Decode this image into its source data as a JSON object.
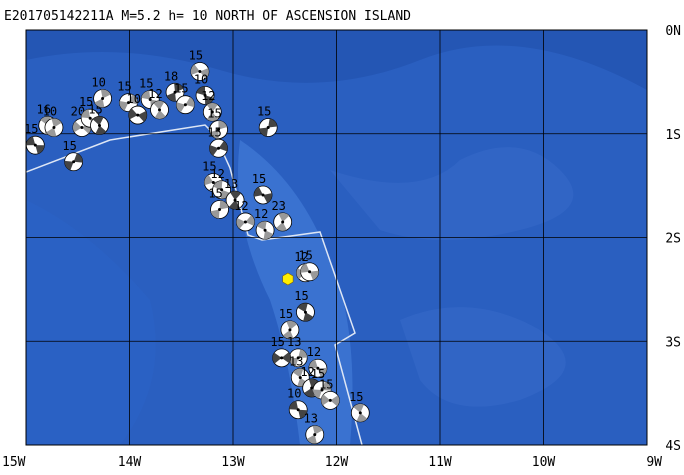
{
  "title": "E201705142211A M=5.2 h= 10 NORTH OF ASCENSION ISLAND",
  "lon_ticks": [
    {
      "value": -15,
      "label": "15W"
    },
    {
      "value": -14,
      "label": "14W"
    },
    {
      "value": -13,
      "label": "13W"
    },
    {
      "value": -12,
      "label": "12W"
    },
    {
      "value": -11,
      "label": "11W"
    },
    {
      "value": -10,
      "label": "10W"
    },
    {
      "value": -9,
      "label": "9W"
    }
  ],
  "lat_ticks": [
    {
      "value": 0,
      "label": "0N"
    },
    {
      "value": -1,
      "label": "1S"
    },
    {
      "value": -2,
      "label": "2S"
    },
    {
      "value": -3,
      "label": "3S"
    },
    {
      "value": -4,
      "label": "4S"
    }
  ],
  "epicenter": {
    "lon": -12.47,
    "lat": -2.4
  },
  "events": [
    {
      "lon": -14.91,
      "lat": -1.11,
      "depth": 15
    },
    {
      "lon": -14.79,
      "lat": -0.92,
      "depth": 16
    },
    {
      "lon": -14.73,
      "lat": -0.94,
      "depth": 10
    },
    {
      "lon": -14.54,
      "lat": -1.27,
      "depth": 15
    },
    {
      "lon": -14.46,
      "lat": -0.94,
      "depth": 20
    },
    {
      "lon": -14.38,
      "lat": -0.85,
      "depth": 15
    },
    {
      "lon": -14.29,
      "lat": -0.92,
      "depth": 15
    },
    {
      "lon": -14.26,
      "lat": -0.66,
      "depth": 10
    },
    {
      "lon": -14.01,
      "lat": -0.7,
      "depth": 15
    },
    {
      "lon": -13.92,
      "lat": -0.82,
      "depth": 10
    },
    {
      "lon": -13.8,
      "lat": -0.67,
      "depth": 15
    },
    {
      "lon": -13.71,
      "lat": -0.77,
      "depth": 12
    },
    {
      "lon": -13.56,
      "lat": -0.6,
      "depth": 18
    },
    {
      "lon": -13.46,
      "lat": -0.72,
      "depth": 15
    },
    {
      "lon": -13.32,
      "lat": -0.4,
      "depth": 15
    },
    {
      "lon": -13.27,
      "lat": -0.63,
      "depth": 10
    },
    {
      "lon": -13.2,
      "lat": -0.79,
      "depth": 12
    },
    {
      "lon": -13.14,
      "lat": -0.96,
      "depth": 15
    },
    {
      "lon": -13.14,
      "lat": -1.14,
      "depth": 15
    },
    {
      "lon": -13.19,
      "lat": -1.47,
      "depth": 15
    },
    {
      "lon": -13.11,
      "lat": -1.54,
      "depth": 12
    },
    {
      "lon": -12.98,
      "lat": -1.64,
      "depth": 13
    },
    {
      "lon": -13.13,
      "lat": -1.73,
      "depth": 15
    },
    {
      "lon": -12.88,
      "lat": -1.85,
      "depth": 12
    },
    {
      "lon": -12.71,
      "lat": -1.59,
      "depth": 15
    },
    {
      "lon": -12.69,
      "lat": -1.93,
      "depth": 12
    },
    {
      "lon": -12.52,
      "lat": -1.85,
      "depth": 23
    },
    {
      "lon": -12.66,
      "lat": -0.94,
      "depth": 15
    },
    {
      "lon": -12.3,
      "lat": -2.34,
      "depth": 12
    },
    {
      "lon": -12.26,
      "lat": -2.33,
      "depth": 15
    },
    {
      "lon": -12.3,
      "lat": -2.72,
      "depth": 15
    },
    {
      "lon": -12.45,
      "lat": -2.89,
      "depth": 15
    },
    {
      "lon": -12.37,
      "lat": -3.16,
      "depth": 13
    },
    {
      "lon": -12.53,
      "lat": -3.16,
      "depth": 15
    },
    {
      "lon": -12.18,
      "lat": -3.26,
      "depth": 12
    },
    {
      "lon": -12.35,
      "lat": -3.35,
      "depth": 13
    },
    {
      "lon": -12.24,
      "lat": -3.45,
      "depth": 12
    },
    {
      "lon": -12.14,
      "lat": -3.47,
      "depth": 15
    },
    {
      "lon": -12.06,
      "lat": -3.57,
      "depth": 15
    },
    {
      "lon": -12.37,
      "lat": -3.66,
      "depth": 10
    },
    {
      "lon": -11.77,
      "lat": -3.69,
      "depth": 15
    },
    {
      "lon": -12.21,
      "lat": -3.9,
      "depth": 13
    }
  ]
}
